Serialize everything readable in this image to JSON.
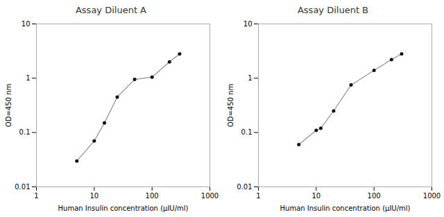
{
  "chart_data": [
    {
      "type": "line",
      "title": "Assay Diluent A",
      "x": [
        5,
        10,
        15,
        25,
        50,
        100,
        200,
        300
      ],
      "values": [
        0.03,
        0.07,
        0.15,
        0.45,
        0.95,
        1.05,
        2.0,
        2.8
      ],
      "xlabel": "Human Insulin concentration (μIU/ml)",
      "ylabel": "OD=450 nm",
      "xlim": [
        1,
        1000
      ],
      "ylim": [
        0.01,
        10
      ],
      "xticks": [
        1,
        10,
        100,
        1000
      ],
      "yticks": [
        0.01,
        0.1,
        1,
        10
      ],
      "log": true,
      "grid": false,
      "marker": "circle",
      "color": "#909090",
      "colors": [
        "#111111",
        "#111111",
        "#111111",
        "#111111",
        "#111111",
        "#111111",
        "#111111",
        "#111111"
      ]
    },
    {
      "type": "line",
      "title": "Assay Diluent B",
      "x": [
        5,
        10,
        12,
        20,
        40,
        100,
        200,
        300
      ],
      "values": [
        0.06,
        0.11,
        0.12,
        0.25,
        0.75,
        1.4,
        2.2,
        2.8
      ],
      "xlabel": "Human Insulin concentration (μIU/ml)",
      "ylabel": "OD=450 nm",
      "xlim": [
        1,
        1000
      ],
      "ylim": [
        0.01,
        10
      ],
      "xticks": [
        1,
        10,
        100,
        1000
      ],
      "yticks": [
        0.01,
        0.1,
        1,
        10
      ],
      "log": true,
      "grid": false,
      "marker": "circle",
      "color": "#909090",
      "colors": [
        "#111111",
        "#111111",
        "#111111",
        "#111111",
        "#111111",
        "#111111",
        "#111111",
        "#111111"
      ]
    }
  ]
}
